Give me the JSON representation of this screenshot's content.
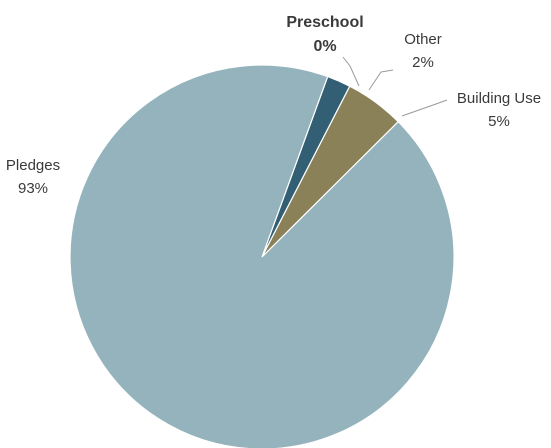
{
  "chart_data": {
    "type": "pie",
    "start_angle_deg": 70,
    "direction": "clockwise",
    "slices": [
      {
        "label": "Preschool",
        "value": 0,
        "display": "0%",
        "color": "#1f4e6b",
        "emphasis": true
      },
      {
        "label": "Other",
        "value": 2,
        "display": "2%",
        "color": "#325f73"
      },
      {
        "label": "Building Use",
        "value": 5,
        "display": "5%",
        "color": "#8a8158"
      },
      {
        "label": "Pledges",
        "value": 93,
        "display": "93%",
        "color": "#94b3bc"
      }
    ]
  }
}
